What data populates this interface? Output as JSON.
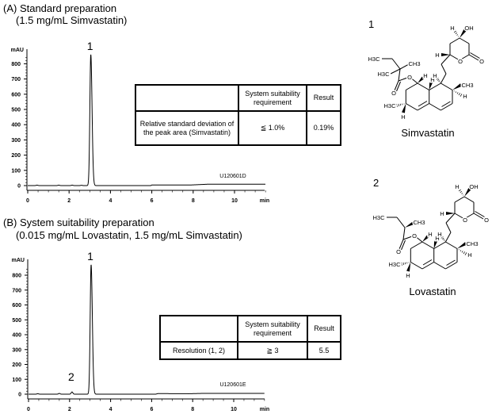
{
  "panels": [
    {
      "title": "(A) Standard preparation",
      "subtitle": "(1.5 mg/mL Simvastatin)",
      "table": {
        "headers": [
          "",
          "System suitability requirement",
          "Result"
        ],
        "rows": [
          [
            "Relative standard deviation of the peak area (Simvastatin)",
            "≦ 1.0%",
            "0.19%"
          ]
        ]
      }
    },
    {
      "title": "(B) System suitability preparation",
      "subtitle": "(0.015 mg/mL Lovastatin, 1.5 mg/mL Simvastatin)",
      "table": {
        "headers": [
          "",
          "System suitability requirement",
          "Result"
        ],
        "rows": [
          [
            "Resolution (1, 2)",
            "≧ 3",
            "5.5"
          ]
        ]
      }
    }
  ],
  "chart_data": [
    {
      "type": "line",
      "title": "(A) Standard preparation",
      "xlabel": "min",
      "ylabel": "mAU",
      "xlim": [
        0,
        11.5
      ],
      "ylim": [
        0,
        900
      ],
      "xticks": [
        0,
        2,
        4,
        6,
        8,
        10
      ],
      "yticks": [
        0,
        100,
        200,
        300,
        400,
        500,
        600,
        700,
        800
      ],
      "sample_id": "U120601D",
      "peaks": [
        {
          "label": "1",
          "rt": 3.05,
          "height": 860
        },
        {
          "label": "",
          "rt": 0.45,
          "height": 3
        },
        {
          "label": "",
          "rt": 1.5,
          "height": 3
        },
        {
          "label": "",
          "rt": 2.15,
          "height": 3
        },
        {
          "label": "",
          "rt": 2.6,
          "height": 2
        }
      ],
      "baseline": [
        [
          0,
          0
        ],
        [
          5.95,
          0
        ],
        [
          6.0,
          4
        ],
        [
          7.9,
          4
        ],
        [
          8.7,
          9
        ],
        [
          11.5,
          9
        ]
      ],
      "grid": false,
      "color": "#000000"
    },
    {
      "type": "line",
      "title": "(B) System suitability preparation",
      "xlabel": "min",
      "ylabel": "mAU",
      "xlim": [
        0,
        11.5
      ],
      "ylim": [
        0,
        900
      ],
      "xticks": [
        0,
        2,
        4,
        6,
        8,
        10
      ],
      "yticks": [
        0,
        100,
        200,
        300,
        400,
        500,
        600,
        700,
        800
      ],
      "sample_id": "U120601E",
      "peaks": [
        {
          "label": "1",
          "rt": 3.05,
          "height": 870
        },
        {
          "label": "2",
          "rt": 2.12,
          "height": 15
        },
        {
          "label": "",
          "rt": 0.45,
          "height": 3
        },
        {
          "label": "",
          "rt": 1.5,
          "height": 5
        }
      ],
      "baseline": [
        [
          0,
          0
        ],
        [
          6.2,
          0
        ],
        [
          6.3,
          4
        ],
        [
          7.8,
          3
        ],
        [
          8.4,
          5
        ],
        [
          11.5,
          5
        ]
      ],
      "grid": false,
      "color": "#000000"
    }
  ],
  "structures": [
    {
      "number": "1",
      "name": "Simvastatin",
      "atom_labels": [
        "H3C",
        "H3C",
        "CH3",
        "O",
        "O",
        "H",
        "H",
        "H",
        "CH3",
        "H",
        "H3C",
        "H",
        "H",
        "OH",
        "H",
        "O",
        "O"
      ]
    },
    {
      "number": "2",
      "name": "Lovastatin",
      "atom_labels": [
        "H3C",
        "",
        "CH3",
        "O",
        "O",
        "H",
        "H",
        "H",
        "CH3",
        "H",
        "H3C",
        "H",
        "H",
        "OH",
        "H",
        "O",
        "O"
      ]
    }
  ]
}
